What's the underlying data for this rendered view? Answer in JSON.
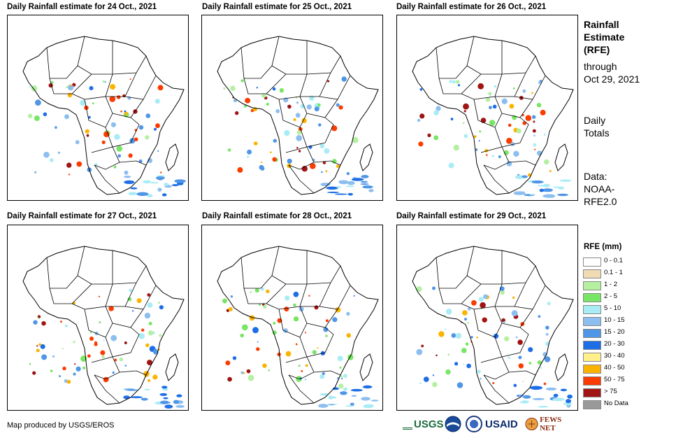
{
  "panels": [
    {
      "title": "Daily Rainfall estimate for 24 Oct., 2021"
    },
    {
      "title": "Daily Rainfall estimate for 25 Oct., 2021"
    },
    {
      "title": "Daily Rainfall estimate for 26 Oct., 2021"
    },
    {
      "title": "Daily Rainfall estimate for 27 Oct., 2021"
    },
    {
      "title": "Daily Rainfall estimate for 28 Oct., 2021"
    },
    {
      "title": "Daily Rainfall estimate for 29 Oct., 2021"
    }
  ],
  "sidebar": {
    "title_line1": "Rainfall",
    "title_line2": "Estimate",
    "title_line3": "(RFE)",
    "through_label": "through",
    "through_date": "Oct 29, 2021",
    "totals_line1": "Daily",
    "totals_line2": "Totals",
    "data_line1": "Data:",
    "data_line2": "NOAA-",
    "data_line3": "RFE2.0"
  },
  "legend": {
    "title": "RFE (mm)",
    "items": [
      {
        "label": "0 - 0.1",
        "color": "#ffffff"
      },
      {
        "label": "0.1 - 1",
        "color": "#f0dcb4"
      },
      {
        "label": "1 - 2",
        "color": "#b4f0a0"
      },
      {
        "label": "2 - 5",
        "color": "#78e664"
      },
      {
        "label": "5 - 10",
        "color": "#aaecf6"
      },
      {
        "label": "10 - 15",
        "color": "#8cbef0"
      },
      {
        "label": "15 - 20",
        "color": "#5096e6"
      },
      {
        "label": "20 - 30",
        "color": "#1e6ee6"
      },
      {
        "label": "30 - 40",
        "color": "#fff08c"
      },
      {
        "label": "40 - 50",
        "color": "#fab400"
      },
      {
        "label": "50 - 75",
        "color": "#fa3c00"
      },
      {
        "label": "> 75",
        "color": "#a01414"
      },
      {
        "label": "No Data",
        "color": "#999999"
      }
    ]
  },
  "footer": {
    "credit": "Map produced by USGS/EROS"
  },
  "logos": {
    "usgs": "USGS",
    "usaid": "USAID",
    "fewsnet": "FEWS NET"
  }
}
